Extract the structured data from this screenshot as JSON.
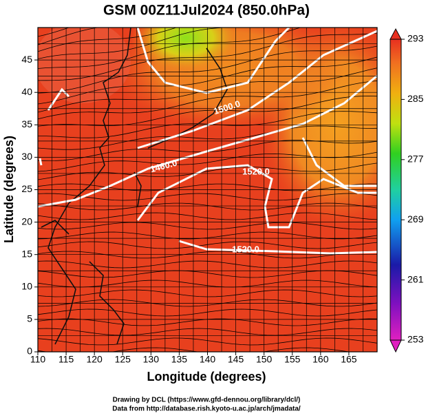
{
  "chart_data": {
    "type": "map",
    "title": "GSM 00Z11Jul2024 (850.0hPa)",
    "xlabel": "Longitude (degrees)",
    "ylabel": "Latitude  (degrees)",
    "xlim": [
      110,
      170
    ],
    "ylim": [
      0,
      50
    ],
    "xticks": [
      110,
      115,
      120,
      125,
      130,
      135,
      140,
      145,
      150,
      155,
      160,
      165
    ],
    "yticks": [
      0,
      5,
      10,
      15,
      20,
      25,
      30,
      35,
      40,
      45
    ],
    "colorbar_lim": [
      253,
      293
    ],
    "colorbar_ticks": [
      253,
      261,
      269,
      277,
      285,
      293
    ],
    "contour_labels": [
      "1500.0",
      "1460.0",
      "1520.0",
      "1520.0"
    ],
    "credits": [
      "Drawing by DCL (https://www.gfd-dennou.org/library/dcl/)",
      "Data from http://database.rish.kyoto-u.ac.jp/arch/jmadata/"
    ]
  }
}
